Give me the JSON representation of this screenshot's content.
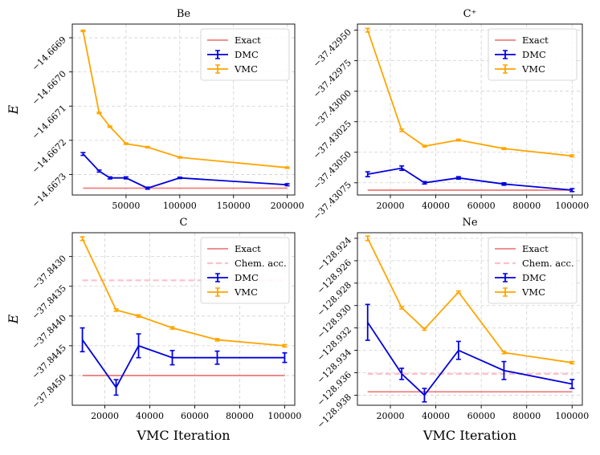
{
  "figure": {
    "ylabel": "E",
    "xlabel": "VMC Iteration"
  },
  "colors": {
    "exact": "#f08080",
    "chem": "#ffc0cb",
    "dmc": "#0000dd",
    "vmc": "#ffa500"
  },
  "chart_data": [
    {
      "type": "line",
      "title": "Be",
      "xlim": [
        0,
        207000
      ],
      "ylim": [
        -14.66736,
        -14.66686
      ],
      "xticks": [
        50000,
        100000,
        150000,
        200000
      ],
      "xtick_labels": [
        "50000",
        "100000",
        "150000",
        "200000"
      ],
      "yticks": [
        -14.6669,
        -14.667,
        -14.6671,
        -14.6672,
        -14.6673
      ],
      "ytick_labels": [
        "−14.6669",
        "−14.6670",
        "−14.6671",
        "−14.6672",
        "−14.6673"
      ],
      "legend": [
        "Exact",
        "DMC",
        "VMC"
      ],
      "show_ylabel": true,
      "show_xlabel": false,
      "exact": {
        "value": -14.66734,
        "x": [
          10000,
          200000
        ]
      },
      "series": [
        {
          "name": "VMC",
          "x": [
            10000,
            25000,
            35000,
            50000,
            70000,
            100000,
            200000
          ],
          "y": [
            -14.66688,
            -14.66712,
            -14.66716,
            -14.66721,
            -14.66722,
            -14.66725,
            -14.66728
          ],
          "err": [
            2e-06,
            2e-06,
            2e-06,
            2e-06,
            2e-06,
            2e-06,
            2e-06
          ]
        },
        {
          "name": "DMC",
          "x": [
            10000,
            25000,
            35000,
            50000,
            70000,
            100000,
            200000
          ],
          "y": [
            -14.66724,
            -14.66729,
            -14.66731,
            -14.66731,
            -14.66734,
            -14.66731,
            -14.66733
          ],
          "err": [
            4e-06,
            3e-06,
            3e-06,
            3e-06,
            3e-06,
            2e-06,
            3e-06
          ]
        }
      ]
    },
    {
      "type": "line",
      "title": "C⁺",
      "xlim": [
        5500,
        104500
      ],
      "ylim": [
        -37.43085,
        -37.42945
      ],
      "xticks": [
        20000,
        40000,
        60000,
        80000,
        100000
      ],
      "xtick_labels": [
        "20000",
        "40000",
        "60000",
        "80000",
        "100000"
      ],
      "yticks": [
        -37.4295,
        -37.42975,
        -37.43,
        -37.43025,
        -37.4305,
        -37.43075
      ],
      "ytick_labels": [
        "−37.42950",
        "−37.42975",
        "−37.43000",
        "−37.43025",
        "−37.43050",
        "−37.43075"
      ],
      "legend": [
        "Exact",
        "DMC",
        "VMC"
      ],
      "show_ylabel": false,
      "show_xlabel": false,
      "exact": {
        "value": -37.43081,
        "x": [
          10000,
          100000
        ]
      },
      "series": [
        {
          "name": "VMC",
          "x": [
            10000,
            25000,
            35000,
            50000,
            70000,
            100000
          ],
          "y": [
            -37.4295,
            -37.43032,
            -37.43045,
            -37.4304,
            -37.43047,
            -37.43053
          ],
          "err": [
            1.5e-05,
            1e-05,
            7e-06,
            7e-06,
            7e-06,
            8e-06
          ]
        },
        {
          "name": "DMC",
          "x": [
            10000,
            25000,
            35000,
            50000,
            70000,
            100000
          ],
          "y": [
            -37.43068,
            -37.43063,
            -37.43075,
            -37.43071,
            -37.43076,
            -37.43081
          ],
          "err": [
            2e-05,
            1.8e-05,
            1e-05,
            1e-05,
            1e-05,
            1.2e-05
          ]
        }
      ]
    },
    {
      "type": "line",
      "title": "C",
      "xlim": [
        5500,
        104500
      ],
      "ylim": [
        -37.8455,
        -37.8426
      ],
      "xticks": [
        20000,
        40000,
        60000,
        80000,
        100000
      ],
      "xtick_labels": [
        "20000",
        "40000",
        "60000",
        "80000",
        "100000"
      ],
      "yticks": [
        -37.843,
        -37.8435,
        -37.844,
        -37.8445,
        -37.845
      ],
      "ytick_labels": [
        "−37.8430",
        "−37.8435",
        "−37.8440",
        "−37.8445",
        "−37.8450"
      ],
      "legend": [
        "Exact",
        "Chem. acc.",
        "DMC",
        "VMC"
      ],
      "show_ylabel": true,
      "show_xlabel": true,
      "exact": {
        "value": -37.845,
        "x": [
          10000,
          100000
        ]
      },
      "chem": {
        "value": -37.8434,
        "x": [
          10000,
          100000
        ]
      },
      "series": [
        {
          "name": "VMC",
          "x": [
            10000,
            25000,
            35000,
            50000,
            70000,
            100000
          ],
          "y": [
            -37.8427,
            -37.8439,
            -37.844,
            -37.8442,
            -37.8444,
            -37.8445
          ],
          "err": [
            3e-05,
            2e-05,
            2e-05,
            2e-05,
            2e-05,
            2e-05
          ]
        },
        {
          "name": "DMC",
          "x": [
            10000,
            25000,
            35000,
            50000,
            70000,
            100000
          ],
          "y": [
            -37.8444,
            -37.8452,
            -37.8445,
            -37.8447,
            -37.8447,
            -37.8447
          ],
          "err": [
            0.0002,
            0.00013,
            0.0002,
            0.00012,
            0.00011,
            8e-05
          ]
        }
      ]
    },
    {
      "type": "line",
      "title": "Ne",
      "xlim": [
        5500,
        104500
      ],
      "ylim": [
        -128.9389,
        -128.9235
      ],
      "xticks": [
        20000,
        40000,
        60000,
        80000,
        100000
      ],
      "xtick_labels": [
        "20000",
        "40000",
        "60000",
        "80000",
        "100000"
      ],
      "yticks": [
        -128.924,
        -128.926,
        -128.928,
        -128.93,
        -128.932,
        -128.934,
        -128.936,
        -128.938
      ],
      "ytick_labels": [
        "−128.924",
        "−128.926",
        "−128.928",
        "−128.930",
        "−128.932",
        "−128.934",
        "−128.936",
        "−128.938"
      ],
      "legend": [
        "Exact",
        "Chem. acc.",
        "DMC",
        "VMC"
      ],
      "show_ylabel": false,
      "show_xlabel": true,
      "exact": {
        "value": -128.9377,
        "x": [
          10000,
          100000
        ]
      },
      "chem": {
        "value": -128.9361,
        "x": [
          10000,
          100000
        ]
      },
      "series": [
        {
          "name": "VMC",
          "x": [
            10000,
            25000,
            35000,
            50000,
            70000,
            100000
          ],
          "y": [
            -128.924,
            -128.9302,
            -128.9321,
            -128.9288,
            -128.9342,
            -128.9351
          ],
          "err": [
            0.0002,
            0.0001,
            0.0001,
            0.0001,
            0.0001,
            0.0001
          ]
        },
        {
          "name": "DMC",
          "x": [
            10000,
            25000,
            35000,
            50000,
            70000,
            100000
          ],
          "y": [
            -128.9315,
            -128.9361,
            -128.938,
            -128.934,
            -128.9358,
            -128.937
          ],
          "err": [
            0.0016,
            0.0005,
            0.0006,
            0.0008,
            0.0008,
            0.0004
          ]
        }
      ]
    }
  ]
}
